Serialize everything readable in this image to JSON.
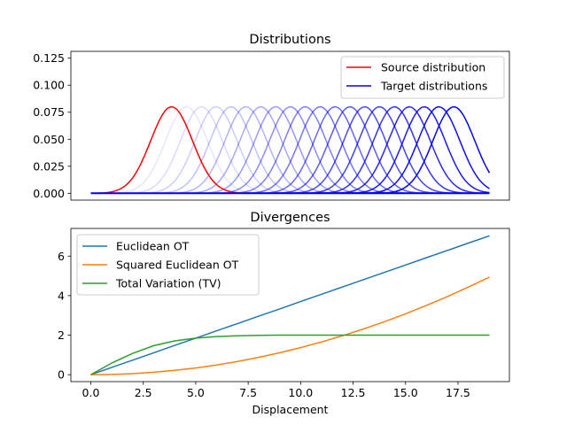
{
  "chart_data": [
    {
      "type": "line",
      "title": "Distributions",
      "xlim": [
        -0.95,
        19.95
      ],
      "ylim": [
        -0.0063,
        0.1313
      ],
      "yticks": [
        "0.000",
        "0.025",
        "0.050",
        "0.075",
        "0.100",
        "0.125"
      ],
      "ytick_values": [
        0,
        0.025,
        0.05,
        0.075,
        0.1,
        0.125
      ],
      "grid": false,
      "legend_position": "top-right",
      "x_range": [
        0,
        19
      ],
      "source": {
        "name": "Source distribution",
        "color": "#ff0000",
        "mean": 3.85,
        "sd": 1.0,
        "peak": 0.08
      },
      "targets": {
        "name": "Target distributions",
        "color": "#0000ff",
        "sd": 1.0,
        "peak": 0.08,
        "means": [
          3.85,
          4.56,
          5.27,
          5.97,
          6.68,
          7.39,
          8.1,
          8.81,
          9.51,
          10.22,
          10.93,
          11.64,
          12.35,
          13.05,
          13.76,
          14.47,
          15.18,
          15.89,
          16.59,
          17.3
        ]
      }
    },
    {
      "type": "line",
      "title": "Divergences",
      "xlabel": "Displacement",
      "ylabel": "",
      "xlim": [
        -0.95,
        19.95
      ],
      "ylim": [
        -0.35,
        7.4
      ],
      "xticks": [
        "0.0",
        "2.5",
        "5.0",
        "7.5",
        "10.0",
        "12.5",
        "15.0",
        "17.5"
      ],
      "xtick_values": [
        0,
        2.5,
        5,
        7.5,
        10,
        12.5,
        15,
        17.5
      ],
      "yticks": [
        "0",
        "2",
        "4",
        "6"
      ],
      "ytick_values": [
        0,
        2,
        4,
        6
      ],
      "grid": false,
      "legend_position": "top-left",
      "x": [
        0,
        1,
        2,
        3,
        4,
        5,
        6,
        7,
        8,
        9,
        10,
        11,
        12,
        13,
        14,
        15,
        16,
        17,
        18,
        19
      ],
      "series": [
        {
          "name": "Euclidean OT",
          "color": "#1f77b4",
          "values": [
            0,
            0.37,
            0.74,
            1.11,
            1.48,
            1.85,
            2.22,
            2.59,
            2.96,
            3.33,
            3.7,
            4.07,
            4.44,
            4.81,
            5.18,
            5.55,
            5.92,
            6.29,
            6.66,
            7.03
          ]
        },
        {
          "name": "Squared Euclidean OT",
          "color": "#ff7f0e",
          "values": [
            0,
            0.014,
            0.055,
            0.123,
            0.219,
            0.342,
            0.493,
            0.671,
            0.876,
            1.109,
            1.369,
            1.656,
            1.971,
            2.314,
            2.683,
            3.08,
            3.505,
            3.957,
            4.436,
            4.942
          ]
        },
        {
          "name": "Total Variation (TV)",
          "color": "#2ca02c",
          "values": [
            0,
            0.59,
            1.08,
            1.47,
            1.71,
            1.85,
            1.93,
            1.97,
            1.99,
            2.0,
            2.0,
            2.0,
            2.0,
            2.0,
            2.0,
            2.0,
            2.0,
            2.0,
            2.0,
            2.0
          ]
        }
      ]
    }
  ]
}
